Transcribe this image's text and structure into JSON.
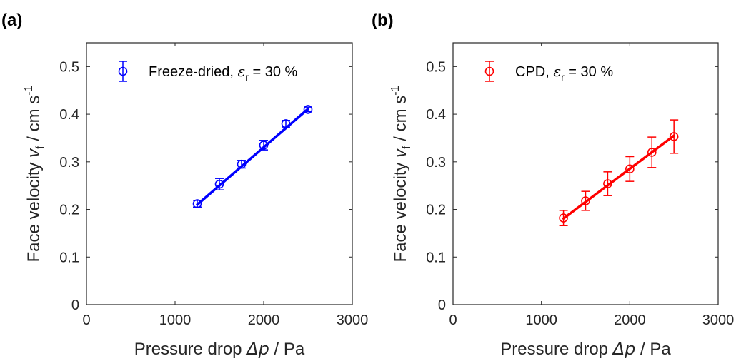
{
  "chart_data": [
    {
      "type": "scatter",
      "panel_label": "(a)",
      "xlabel_pre": "Pressure drop ",
      "xlabel_sym": "Δp",
      "xlabel_post": " / Pa",
      "ylabel_pre": "Face velocity ",
      "ylabel_sym": "v",
      "ylabel_sub": "f",
      "ylabel_post": " / cm s",
      "ylabel_sup": "-1",
      "xlim": [
        0,
        3000
      ],
      "ylim": [
        0,
        0.55
      ],
      "xticks": [
        0,
        1000,
        2000,
        3000
      ],
      "yticks": [
        0,
        0.1,
        0.2,
        0.3,
        0.4,
        0.5
      ],
      "xtick_labels": [
        "0",
        "1000",
        "2000",
        "3000"
      ],
      "ytick_labels": [
        "0",
        "0.1",
        "0.2",
        "0.3",
        "0.4",
        "0.5"
      ],
      "color": "#0000ff",
      "legend_pre": "Freeze-dried, ",
      "legend_sym": "ε",
      "legend_sub": "r",
      "legend_post": " = 30 %",
      "legend_position": "top-left",
      "series": [
        {
          "x": [
            1250,
            1500,
            1750,
            2000,
            2250,
            2500
          ],
          "y": [
            0.212,
            0.253,
            0.295,
            0.335,
            0.38,
            0.41
          ],
          "err": [
            0.007,
            0.012,
            0.008,
            0.01,
            0.007,
            0.005
          ]
        }
      ],
      "fit": {
        "x": [
          1250,
          2500
        ],
        "y": [
          0.21,
          0.411
        ]
      }
    },
    {
      "type": "scatter",
      "panel_label": "(b)",
      "xlabel_pre": "Pressure drop ",
      "xlabel_sym": "Δp",
      "xlabel_post": " / Pa",
      "ylabel_pre": "Face velocity ",
      "ylabel_sym": "v",
      "ylabel_sub": "f",
      "ylabel_post": " / cm s",
      "ylabel_sup": "-1",
      "xlim": [
        0,
        3000
      ],
      "ylim": [
        0,
        0.55
      ],
      "xticks": [
        0,
        1000,
        2000,
        3000
      ],
      "yticks": [
        0,
        0.1,
        0.2,
        0.3,
        0.4,
        0.5
      ],
      "xtick_labels": [
        "0",
        "1000",
        "2000",
        "3000"
      ],
      "ytick_labels": [
        "0",
        "0.1",
        "0.2",
        "0.3",
        "0.4",
        "0.5"
      ],
      "color": "#ff0000",
      "legend_pre": "CPD, ",
      "legend_sym": "ε",
      "legend_sub": "r",
      "legend_post": " = 30 %",
      "legend_position": "top-left",
      "series": [
        {
          "x": [
            1250,
            1500,
            1750,
            2000,
            2250,
            2500
          ],
          "y": [
            0.182,
            0.218,
            0.254,
            0.285,
            0.32,
            0.353
          ],
          "err": [
            0.016,
            0.02,
            0.025,
            0.026,
            0.032,
            0.035
          ]
        }
      ],
      "fit": {
        "x": [
          1250,
          2500
        ],
        "y": [
          0.181,
          0.355
        ]
      }
    }
  ]
}
